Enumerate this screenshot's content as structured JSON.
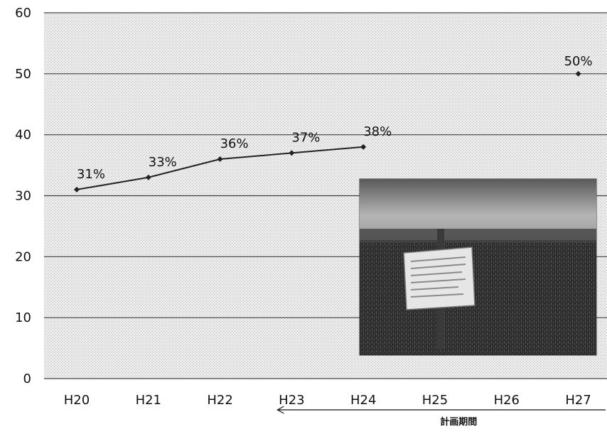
{
  "chart_data": {
    "type": "line",
    "categories": [
      "H20",
      "H21",
      "H22",
      "H23",
      "H24",
      "H25",
      "H26",
      "H27"
    ],
    "series": [
      {
        "values": [
          31,
          33,
          36,
          37,
          38,
          null,
          null,
          null
        ],
        "labels": [
          "31%",
          "33%",
          "36%",
          "37%",
          "38%",
          "",
          "",
          ""
        ]
      }
    ],
    "target": {
      "category": "H27",
      "value": 50,
      "label": "50%"
    },
    "ylim": [
      0,
      60
    ],
    "yticks": [
      0,
      10,
      20,
      30,
      40,
      50,
      60
    ],
    "grid": true,
    "title": "",
    "xlabel": "",
    "ylabel": "",
    "annotation": {
      "text": "計画期間",
      "from_category": "H23",
      "to_category": "H27"
    },
    "inset_photo": {
      "description": ""
    },
    "colors": {
      "line": "#222222",
      "marker": "#222222",
      "grid": "#444444",
      "plot_background": "#e9e9e9"
    }
  }
}
